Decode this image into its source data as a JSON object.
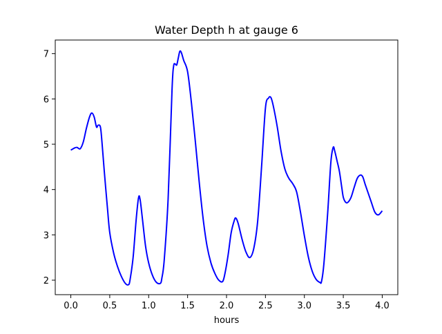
{
  "chart_data": {
    "type": "line",
    "title": "Water Depth h at gauge 6",
    "xlabel": "hours",
    "ylabel": "",
    "xlim": [
      -0.2,
      4.2
    ],
    "ylim": [
      1.68,
      7.3
    ],
    "xticks": [
      0.0,
      0.5,
      1.0,
      1.5,
      2.0,
      2.5,
      3.0,
      3.5,
      4.0
    ],
    "xtick_labels": [
      "0.0",
      "0.5",
      "1.0",
      "1.5",
      "2.0",
      "2.5",
      "3.0",
      "3.5",
      "4.0"
    ],
    "yticks": [
      2,
      3,
      4,
      5,
      6,
      7
    ],
    "ytick_labels": [
      "2",
      "3",
      "4",
      "5",
      "6",
      "7"
    ],
    "grid": false,
    "series": [
      {
        "color": "#0000ff",
        "x": [
          0.0,
          0.05,
          0.08,
          0.12,
          0.16,
          0.2,
          0.24,
          0.27,
          0.3,
          0.33,
          0.35,
          0.38,
          0.4,
          0.43,
          0.47,
          0.5,
          0.55,
          0.6,
          0.65,
          0.7,
          0.74,
          0.76,
          0.8,
          0.84,
          0.87,
          0.89,
          0.92,
          0.96,
          1.0,
          1.05,
          1.1,
          1.15,
          1.17,
          1.2,
          1.25,
          1.3,
          1.32,
          1.34,
          1.36,
          1.38,
          1.4,
          1.42,
          1.45,
          1.5,
          1.55,
          1.6,
          1.65,
          1.7,
          1.75,
          1.8,
          1.85,
          1.9,
          1.95,
          1.98,
          2.02,
          2.06,
          2.1,
          2.12,
          2.15,
          2.2,
          2.25,
          2.3,
          2.35,
          2.4,
          2.45,
          2.5,
          2.54,
          2.57,
          2.6,
          2.65,
          2.7,
          2.75,
          2.8,
          2.85,
          2.9,
          2.95,
          3.0,
          3.05,
          3.1,
          3.15,
          3.2,
          3.22,
          3.25,
          3.3,
          3.34,
          3.37,
          3.39,
          3.42,
          3.45,
          3.48,
          3.5,
          3.53,
          3.56,
          3.6,
          3.64,
          3.68,
          3.72,
          3.75,
          3.78,
          3.82,
          3.86,
          3.9,
          3.93,
          3.96,
          4.0
        ],
        "y": [
          4.87,
          4.92,
          4.93,
          4.9,
          5.05,
          5.35,
          5.6,
          5.69,
          5.6,
          5.38,
          5.42,
          5.38,
          5.05,
          4.4,
          3.6,
          3.05,
          2.6,
          2.3,
          2.08,
          1.93,
          1.9,
          2.0,
          2.5,
          3.35,
          3.82,
          3.78,
          3.35,
          2.75,
          2.38,
          2.1,
          1.95,
          1.93,
          2.05,
          2.45,
          3.8,
          6.2,
          6.72,
          6.77,
          6.75,
          6.9,
          7.05,
          7.02,
          6.85,
          6.6,
          5.9,
          5.05,
          4.15,
          3.35,
          2.75,
          2.38,
          2.15,
          2.0,
          1.97,
          2.15,
          2.55,
          3.05,
          3.32,
          3.37,
          3.25,
          2.9,
          2.62,
          2.5,
          2.7,
          3.3,
          4.5,
          5.8,
          6.02,
          6.03,
          5.85,
          5.4,
          4.85,
          4.45,
          4.25,
          4.13,
          3.95,
          3.5,
          2.98,
          2.52,
          2.2,
          2.02,
          1.95,
          1.97,
          2.35,
          3.5,
          4.6,
          4.93,
          4.85,
          4.63,
          4.4,
          4.05,
          3.83,
          3.72,
          3.72,
          3.83,
          4.05,
          4.25,
          4.32,
          4.28,
          4.12,
          3.92,
          3.72,
          3.52,
          3.45,
          3.45,
          3.53
        ]
      }
    ]
  }
}
